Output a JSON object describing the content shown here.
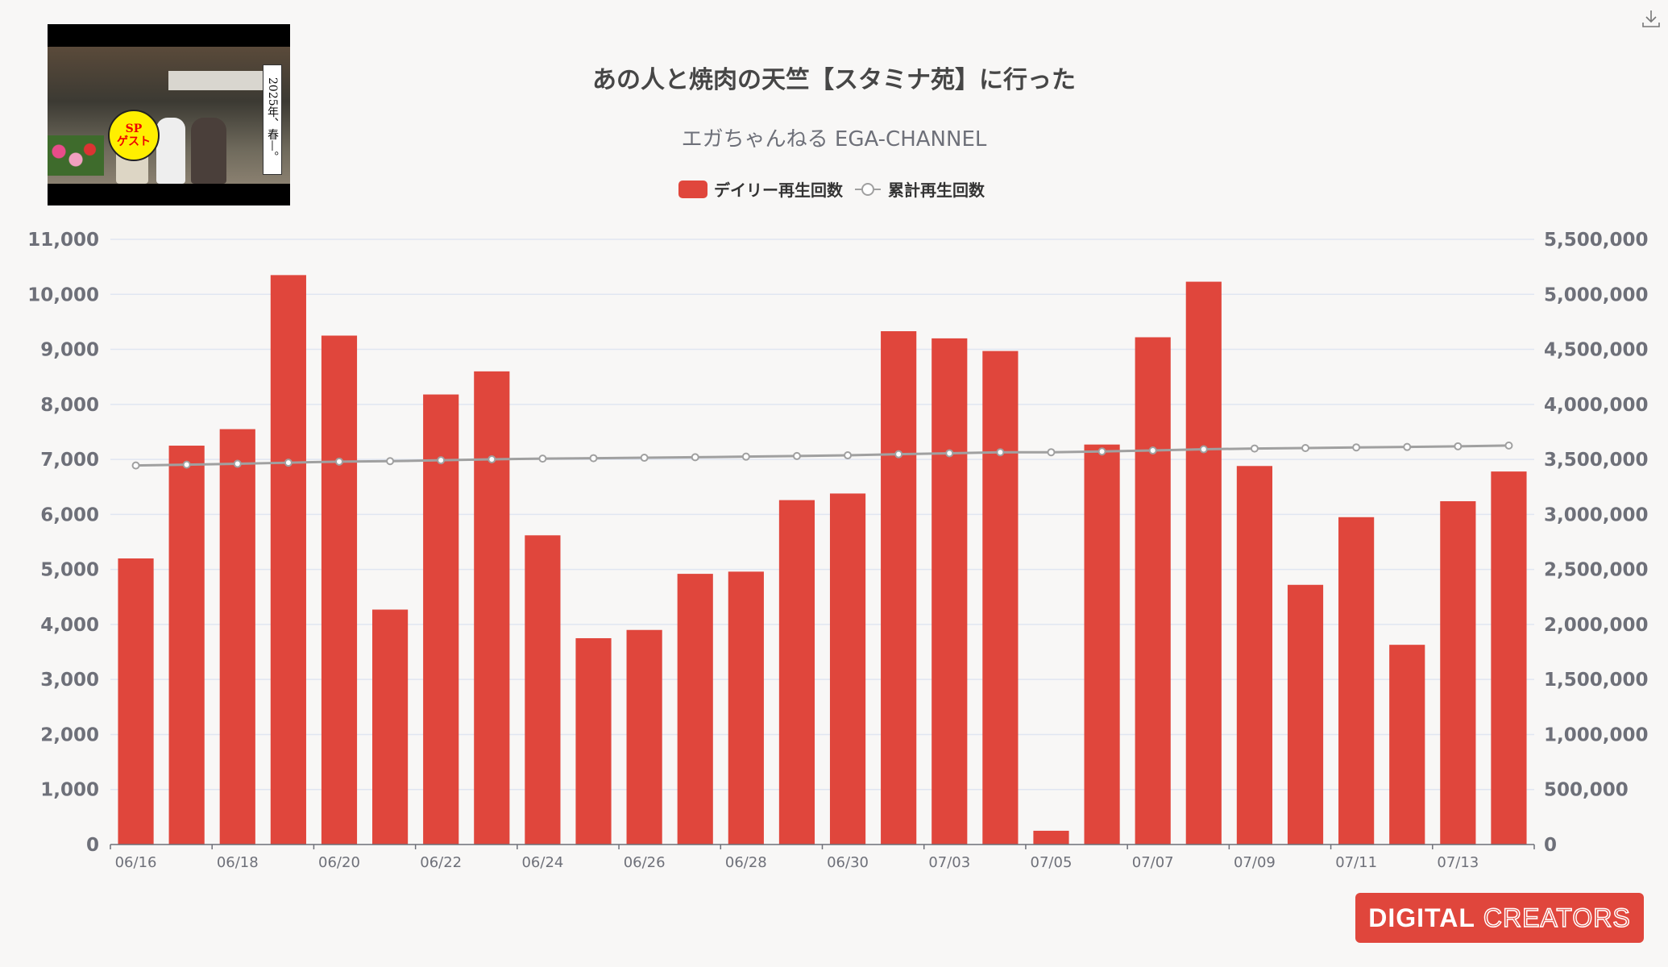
{
  "thumbnail": {
    "badge_line1": "SP",
    "badge_line2": "ゲスト",
    "vertical_text": "2025年、春—。"
  },
  "logo": {
    "part1": "DIGITAL",
    "part2": "CREATORS"
  },
  "toolbox": {
    "download_icon": "download-icon"
  },
  "colors": {
    "bar": "#e0463c",
    "line": "#a0a0a0",
    "grid": "#e0e6f1",
    "axis_text": "#6e7079"
  },
  "chart_data": {
    "type": "bar",
    "title": "あの人と焼肉の天竺【スタミナ苑】に行った",
    "subtitle": "エガちゃんねる EGA-CHANNEL",
    "legend": [
      "デイリー再生回数",
      "累計再生回数"
    ],
    "legend_position": "top-center",
    "categories": [
      "06/16",
      "06/17",
      "06/18",
      "06/19",
      "06/20",
      "06/21",
      "06/22",
      "06/23",
      "06/24",
      "06/25",
      "06/26",
      "06/27",
      "06/28",
      "06/29",
      "06/30",
      "07/02",
      "07/03",
      "07/04",
      "07/05",
      "07/06",
      "07/07",
      "07/08",
      "07/09",
      "07/10",
      "07/11",
      "07/12",
      "07/13",
      "07/14"
    ],
    "x_tick_labels": [
      "06/16",
      "06/18",
      "06/20",
      "06/22",
      "06/24",
      "06/26",
      "06/28",
      "06/30",
      "07/03",
      "07/05",
      "07/07",
      "07/09",
      "07/11",
      "07/13"
    ],
    "series": [
      {
        "name": "デイリー再生回数",
        "type": "bar",
        "axis": "left",
        "values": [
          5200,
          7250,
          7550,
          10350,
          9250,
          4270,
          8180,
          8600,
          5620,
          3750,
          3900,
          4920,
          4960,
          6260,
          6380,
          9330,
          9200,
          8970,
          250,
          7270,
          9220,
          10230,
          6880,
          4720,
          5950,
          3630,
          6240,
          6780
        ]
      },
      {
        "name": "累計再生回数",
        "type": "line",
        "axis": "right",
        "values": [
          3445000,
          3452000,
          3460000,
          3470000,
          3480000,
          3484000,
          3492000,
          3501000,
          3507000,
          3511000,
          3515000,
          3520000,
          3525000,
          3531000,
          3537000,
          3547000,
          3556000,
          3565000,
          3565000,
          3572000,
          3581000,
          3592000,
          3599000,
          3603000,
          3609000,
          3613000,
          3619000,
          3626000
        ]
      }
    ],
    "y_left": {
      "min": 0,
      "max": 11000,
      "ticks": [
        "0",
        "1,000",
        "2,000",
        "3,000",
        "4,000",
        "5,000",
        "6,000",
        "7,000",
        "8,000",
        "9,000",
        "10,000",
        "11,000"
      ]
    },
    "y_right": {
      "min": 0,
      "max": 5500000,
      "ticks": [
        "0",
        "500,000",
        "1,000,000",
        "1,500,000",
        "2,000,000",
        "2,500,000",
        "3,000,000",
        "3,500,000",
        "4,000,000",
        "4,500,000",
        "5,000,000",
        "5,500,000"
      ]
    },
    "grid": true
  }
}
